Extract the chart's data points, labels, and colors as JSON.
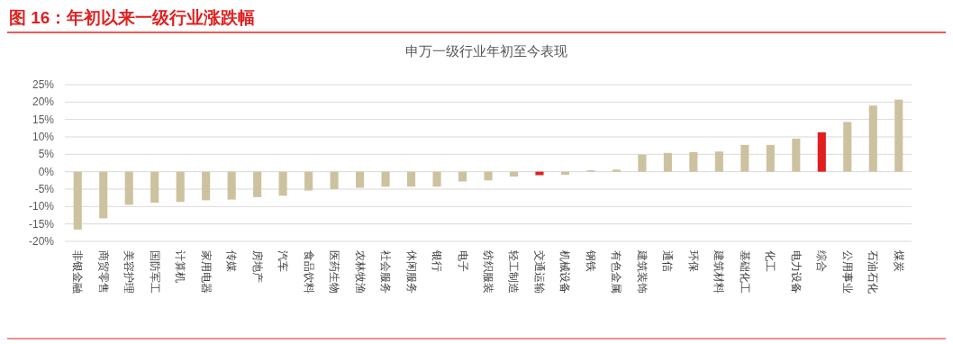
{
  "chart_data": {
    "type": "bar",
    "title": "图 16：年初以来一级行业涨跌幅",
    "subtitle": "申万一级行业年初至今表现",
    "categories": [
      "非银金融",
      "商贸零售",
      "美容护理",
      "国防军工",
      "计算机",
      "家用电器",
      "传媒",
      "房地产",
      "汽车",
      "食品饮料",
      "医药生物",
      "农林牧渔",
      "社会服务",
      "休闲服务",
      "银行",
      "电子",
      "纺织服装",
      "轻工制造",
      "交通运输",
      "机械设备",
      "钢铁",
      "有色金属",
      "建筑装饰",
      "通信",
      "环保",
      "建筑材料",
      "基础化工",
      "化工",
      "电力设备",
      "综合",
      "公用事业",
      "石油石化",
      "煤炭"
    ],
    "values": [
      -16.6,
      -13.4,
      -9.5,
      -8.9,
      -8.7,
      -8.2,
      -8.0,
      -7.3,
      -6.9,
      -5.4,
      -5.0,
      -4.6,
      -4.3,
      -4.3,
      -4.3,
      -2.8,
      -2.5,
      -1.4,
      -1.0,
      -0.9,
      0.4,
      0.6,
      4.9,
      5.4,
      5.6,
      5.8,
      7.7,
      7.7,
      9.5,
      11.3,
      14.3,
      19.0,
      20.7
    ],
    "colors": [
      "#cdc29f",
      "#cdc29f",
      "#cdc29f",
      "#cdc29f",
      "#cdc29f",
      "#cdc29f",
      "#cdc29f",
      "#cdc29f",
      "#cdc29f",
      "#cdc29f",
      "#cdc29f",
      "#cdc29f",
      "#cdc29f",
      "#cdc29f",
      "#cdc29f",
      "#cdc29f",
      "#cdc29f",
      "#cdc29f",
      "#e02020",
      "#cdc29f",
      "#cdc29f",
      "#cdc29f",
      "#cdc29f",
      "#cdc29f",
      "#cdc29f",
      "#cdc29f",
      "#cdc29f",
      "#cdc29f",
      "#cdc29f",
      "#e02020",
      "#cdc29f",
      "#cdc29f",
      "#cdc29f"
    ],
    "ylim": [
      -20,
      25
    ],
    "yticks": [
      {
        "value": -20,
        "label": "-20%"
      },
      {
        "value": -15,
        "label": "-15%"
      },
      {
        "value": -10,
        "label": "-10%"
      },
      {
        "value": -5,
        "label": "-5%"
      },
      {
        "value": 0,
        "label": "0%"
      },
      {
        "value": 5,
        "label": "5%"
      },
      {
        "value": 10,
        "label": "10%"
      },
      {
        "value": 15,
        "label": "15%"
      },
      {
        "value": 20,
        "label": "20%"
      },
      {
        "value": 25,
        "label": "25%"
      }
    ],
    "grid": "y"
  }
}
